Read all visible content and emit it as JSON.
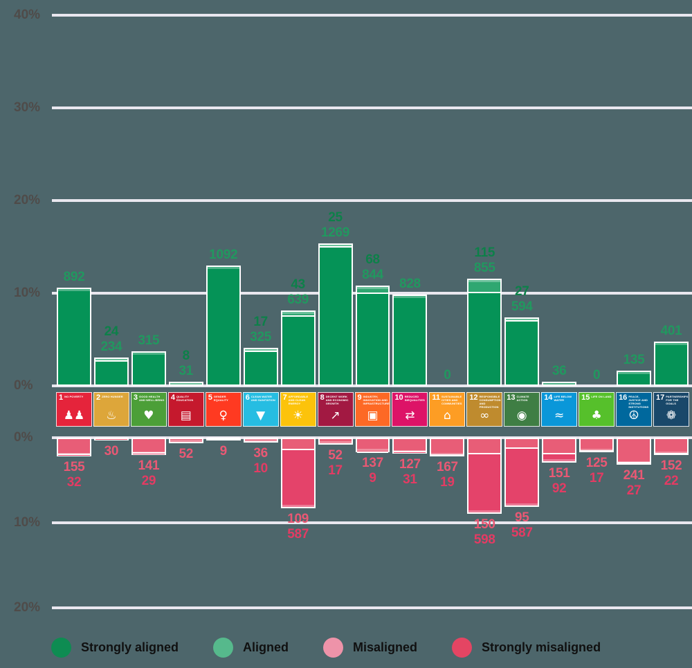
{
  "page": {
    "background": "#4d666b",
    "gridline_color": "#e9e7ef",
    "tick_color": "#4f4b49"
  },
  "chart_data": {
    "type": "diverging-stacked-bar",
    "upper_axis": {
      "unit": "%",
      "ticks": [
        "40%",
        "30%",
        "20%",
        "10%",
        "0%"
      ],
      "tick_values": [
        40,
        30,
        20,
        10,
        0
      ],
      "max": 40,
      "direction": "up"
    },
    "lower_axis": {
      "unit": "%",
      "ticks": [
        "0%",
        "10%",
        "20%"
      ],
      "tick_values": [
        0,
        10,
        20
      ],
      "max": 20,
      "direction": "down"
    },
    "grid": true,
    "value_label_colors": {
      "aligned_label": "#0d8049",
      "strongly_aligned_label": "#21985f",
      "misaligned_label": "#ea5874",
      "strongly_misaligned_label": "#e43b63"
    },
    "segment_colors": {
      "strongly_aligned": "#059357",
      "aligned": "#2fa771",
      "misaligned": "#e85d77",
      "strongly_misaligned": "#e4436a"
    },
    "categories": [
      {
        "num": 1,
        "name": "No Poverty",
        "color": "#e5243b",
        "icon": "sdg1-people-icon",
        "glyph": "♟♟"
      },
      {
        "num": 2,
        "name": "Zero Hunger",
        "color": "#dda63a",
        "icon": "sdg2-bowl-icon",
        "glyph": "♨"
      },
      {
        "num": 3,
        "name": "Good Health and Well-Being",
        "color": "#4c9f38",
        "icon": "sdg3-heartbeat-icon",
        "glyph": "♥"
      },
      {
        "num": 4,
        "name": "Quality Education",
        "color": "#c5192d",
        "icon": "sdg4-book-icon",
        "glyph": "▤"
      },
      {
        "num": 5,
        "name": "Gender Equality",
        "color": "#ff3a21",
        "icon": "sdg5-gender-icon",
        "glyph": "♀"
      },
      {
        "num": 6,
        "name": "Clean Water and Sanitation",
        "color": "#26bde2",
        "icon": "sdg6-water-drop-icon",
        "glyph": "▼"
      },
      {
        "num": 7,
        "name": "Affordable and Clean Energy",
        "color": "#fcc30b",
        "icon": "sdg7-sun-icon",
        "glyph": "☀"
      },
      {
        "num": 8,
        "name": "Decent Work and Economic Growth",
        "color": "#a21942",
        "icon": "sdg8-growth-chart-icon",
        "glyph": "↗"
      },
      {
        "num": 9,
        "name": "Industry, Innovation and Infrastructure",
        "color": "#fd6925",
        "icon": "sdg9-cubes-icon",
        "glyph": "▣"
      },
      {
        "num": 10,
        "name": "Reduced Inequalities",
        "color": "#dd1367",
        "icon": "sdg10-equality-icon",
        "glyph": "⇄"
      },
      {
        "num": 11,
        "name": "Sustainable Cities and Communities",
        "color": "#fd9d24",
        "icon": "sdg11-buildings-icon",
        "glyph": "⌂"
      },
      {
        "num": 12,
        "name": "Responsible Consumption and Production",
        "color": "#bf8b2e",
        "icon": "sdg12-infinity-icon",
        "glyph": "∞"
      },
      {
        "num": 13,
        "name": "Climate Action",
        "color": "#3f7e44",
        "icon": "sdg13-eye-globe-icon",
        "glyph": "◉"
      },
      {
        "num": 14,
        "name": "Life Below Water",
        "color": "#0a97d9",
        "icon": "sdg14-fish-waves-icon",
        "glyph": "≈"
      },
      {
        "num": 15,
        "name": "Life on Land",
        "color": "#56c02b",
        "icon": "sdg15-tree-icon",
        "glyph": "♣"
      },
      {
        "num": 16,
        "name": "Peace, Justice and Strong Institutions",
        "color": "#00689d",
        "icon": "sdg16-dove-icon",
        "glyph": "☮"
      },
      {
        "num": 17,
        "name": "Partnerships for the Goals",
        "color": "#19486a",
        "icon": "sdg17-rings-icon",
        "glyph": "❁"
      }
    ],
    "series": {
      "aligned": [
        0,
        24,
        0,
        8,
        0,
        17,
        43,
        25,
        68,
        0,
        0,
        115,
        27,
        0,
        0,
        0,
        0
      ],
      "strongly_aligned": [
        892,
        234,
        315,
        31,
        1092,
        325,
        639,
        1269,
        844,
        828,
        0,
        855,
        594,
        36,
        0,
        135,
        401
      ],
      "misaligned": [
        155,
        30,
        141,
        52,
        9,
        36,
        109,
        52,
        137,
        127,
        167,
        150,
        95,
        151,
        125,
        241,
        152
      ],
      "strongly_misaligned": [
        32,
        0,
        29,
        0,
        0,
        10,
        587,
        17,
        9,
        31,
        19,
        598,
        587,
        92,
        17,
        27,
        22
      ]
    },
    "legend": [
      {
        "label": "Strongly aligned",
        "color": "#0e8c52"
      },
      {
        "label": "Aligned",
        "color": "#56b98c"
      },
      {
        "label": "Misaligned",
        "color": "#ee93a9"
      },
      {
        "label": "Strongly misaligned",
        "color": "#e44563"
      }
    ],
    "legend_position": "bottom-left"
  }
}
